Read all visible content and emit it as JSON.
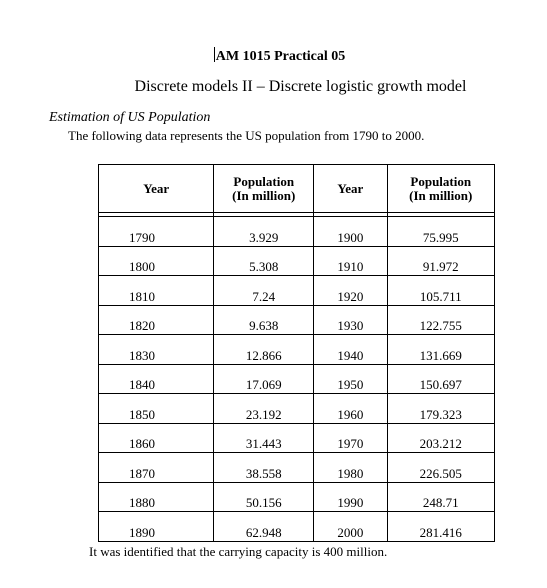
{
  "document": {
    "title": "AM 1015 Practical 05",
    "subtitle": "Discrete models II – Discrete logistic growth model",
    "section_heading": "Estimation of US Population",
    "intro": "The following data represents the US population from 1790 to 2000.",
    "closing": "It was identified that the carrying capacity is 400 million."
  },
  "table": {
    "headers": {
      "year": "Year",
      "population_line1": "Population",
      "population_line2": "(In million)"
    },
    "rows": [
      {
        "year1": "1790",
        "pop1": "3.929",
        "year2": "1900",
        "pop2": "75.995"
      },
      {
        "year1": "1800",
        "pop1": "5.308",
        "year2": "1910",
        "pop2": "91.972"
      },
      {
        "year1": "1810",
        "pop1": "7.24",
        "year2": "1920",
        "pop2": "105.711"
      },
      {
        "year1": "1820",
        "pop1": "9.638",
        "year2": "1930",
        "pop2": "122.755"
      },
      {
        "year1": "1830",
        "pop1": "12.866",
        "year2": "1940",
        "pop2": "131.669"
      },
      {
        "year1": "1840",
        "pop1": "17.069",
        "year2": "1950",
        "pop2": "150.697"
      },
      {
        "year1": "1850",
        "pop1": "23.192",
        "year2": "1960",
        "pop2": "179.323"
      },
      {
        "year1": "1860",
        "pop1": "31.443",
        "year2": "1970",
        "pop2": "203.212"
      },
      {
        "year1": "1870",
        "pop1": "38.558",
        "year2": "1980",
        "pop2": "226.505"
      },
      {
        "year1": "1880",
        "pop1": "50.156",
        "year2": "1990",
        "pop2": "248.71"
      },
      {
        "year1": "1890",
        "pop1": "62.948",
        "year2": "2000",
        "pop2": "281.416"
      }
    ]
  }
}
